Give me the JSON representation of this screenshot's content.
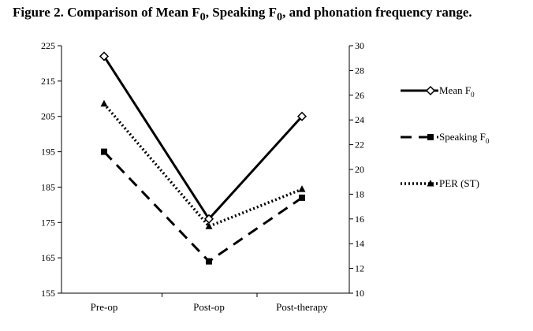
{
  "figure_title": {
    "prefix": "Figure 2. Comparison of Mean F",
    "sub1": "0",
    "mid": ", Speaking F",
    "sub2": "0",
    "suffix": ", and phonation frequency range."
  },
  "chart_data": {
    "type": "line",
    "categories": [
      "Pre-op",
      "Post-op",
      "Post-therapy"
    ],
    "left_axis": {
      "ylim": [
        155,
        225
      ],
      "ticks": [
        155,
        165,
        175,
        185,
        195,
        205,
        215,
        225
      ]
    },
    "right_axis": {
      "ylim": [
        10,
        30
      ],
      "ticks": [
        10,
        12,
        14,
        16,
        18,
        20,
        22,
        24,
        26,
        28,
        30
      ]
    },
    "series": [
      {
        "name": "Mean F",
        "name_sub": "0",
        "axis": "left",
        "values": [
          222,
          176,
          205
        ],
        "line": "solid",
        "marker": "diamond",
        "color": "#000000"
      },
      {
        "name": "Speaking F",
        "name_sub": "0",
        "axis": "left",
        "values": [
          195,
          164,
          182
        ],
        "line": "dashed",
        "marker": "square",
        "color": "#000000"
      },
      {
        "name": "PER (ST)",
        "name_sub": "",
        "axis": "right",
        "values": [
          25.3,
          15.4,
          18.4
        ],
        "line": "dotted",
        "marker": "triangle",
        "color": "#000000"
      }
    ],
    "legend_position": "right",
    "grid": false
  }
}
